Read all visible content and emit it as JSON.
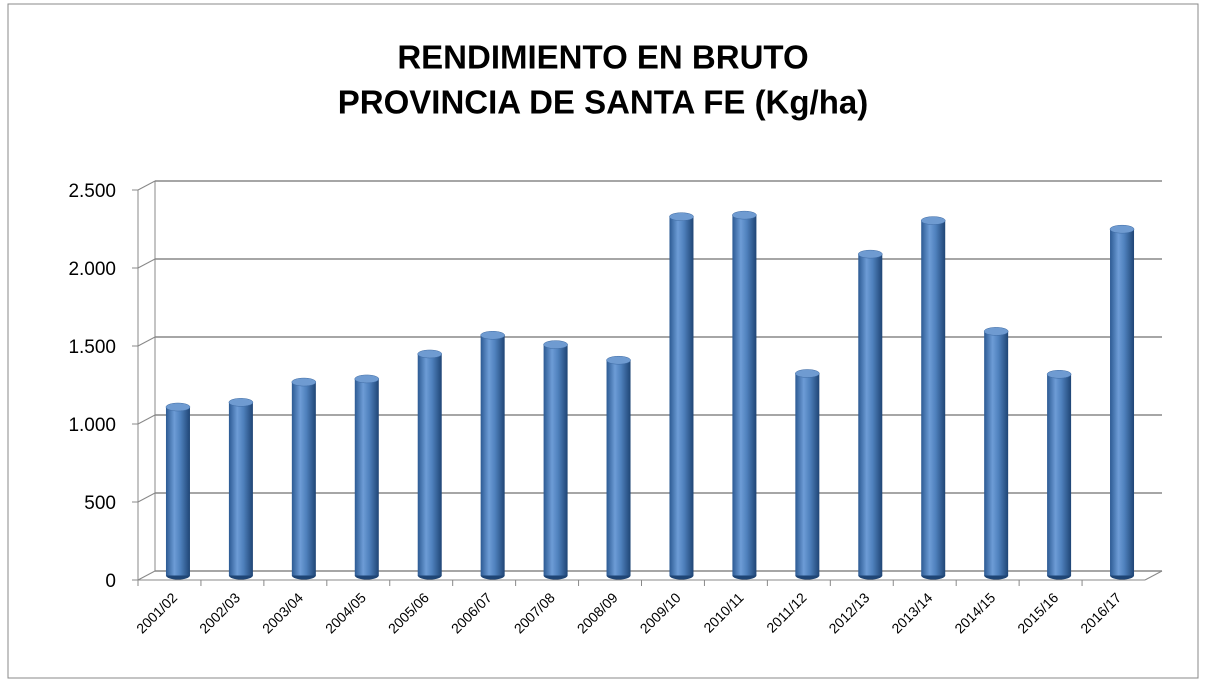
{
  "chart_data": {
    "type": "bar",
    "title": [
      "RENDIMIENTO EN BRUTO",
      "PROVINCIA DE SANTA FE (Kg/ha)"
    ],
    "categories": [
      "2001/02",
      "2002/03",
      "2003/04",
      "2004/05",
      "2005/06",
      "2006/07",
      "2007/08",
      "2008/09",
      "2009/10",
      "2010/11",
      "2011/12",
      "2012/13",
      "2013/14",
      "2014/15",
      "2015/16",
      "2016/17"
    ],
    "values": [
      1080,
      1110,
      1240,
      1260,
      1420,
      1540,
      1480,
      1380,
      2300,
      2310,
      1295,
      2060,
      2275,
      1565,
      1290,
      2220
    ],
    "color": "#4f81bd",
    "ylim": [
      0,
      2500
    ],
    "yticks": [
      0,
      500,
      {
        "value": 1000,
        "label": "1.000"
      },
      {
        "value": 1500,
        "label": "1.500"
      },
      {
        "value": 2000,
        "label": "2.000"
      },
      {
        "value": 2500,
        "label": "2.500"
      }
    ],
    "grid": true
  }
}
